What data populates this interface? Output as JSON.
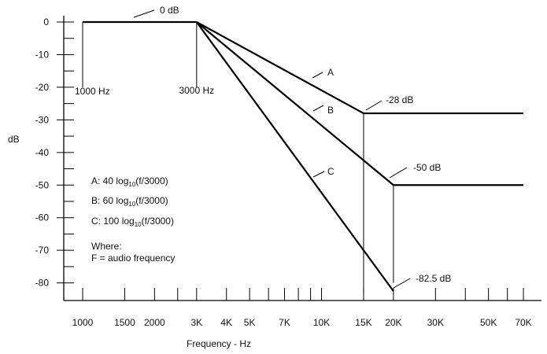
{
  "chart_data": {
    "type": "line",
    "xlabel": "Frequency - Hz",
    "ylabel": "dB",
    "x_scale": "log",
    "xlim": [
      1000,
      70000
    ],
    "ylim": [
      -82.5,
      0
    ],
    "x_ticks": [
      {
        "value": 1000,
        "label": "1000"
      },
      {
        "value": 1500,
        "label": "1500"
      },
      {
        "value": 2000,
        "label": "2000"
      },
      {
        "value": 3000,
        "label": "3K"
      },
      {
        "value": 4000,
        "label": "4K"
      },
      {
        "value": 5000,
        "label": "5K"
      },
      {
        "value": 7000,
        "label": "7K"
      },
      {
        "value": 10000,
        "label": "10K"
      },
      {
        "value": 15000,
        "label": "15K"
      },
      {
        "value": 20000,
        "label": "20K"
      },
      {
        "value": 30000,
        "label": "30K"
      },
      {
        "value": 50000,
        "label": "50K"
      },
      {
        "value": 70000,
        "label": "70K"
      }
    ],
    "x_minor_ticks": [
      2500,
      6000,
      8000,
      9000,
      40000,
      60000
    ],
    "y_ticks": [
      {
        "value": 0,
        "label": "0"
      },
      {
        "value": -10,
        "label": "-10"
      },
      {
        "value": -20,
        "label": "-20"
      },
      {
        "value": -30,
        "label": "-30"
      },
      {
        "value": -40,
        "label": "-40"
      },
      {
        "value": -50,
        "label": "-50"
      },
      {
        "value": -60,
        "label": "-60"
      },
      {
        "value": -70,
        "label": "-70"
      },
      {
        "value": -80,
        "label": "-80"
      }
    ],
    "y_minor_ticks": [
      -5,
      -15,
      -25,
      -35,
      -45,
      -55,
      -65,
      -75
    ],
    "flat": {
      "x": [
        1000,
        3000
      ],
      "y": [
        0,
        0
      ]
    },
    "series": [
      {
        "name": "A",
        "x": [
          3000,
          15000,
          70000
        ],
        "y": [
          0,
          -28,
          -28
        ]
      },
      {
        "name": "B",
        "x": [
          3000,
          20000,
          70000
        ],
        "y": [
          0,
          -50,
          -50
        ]
      },
      {
        "name": "C",
        "x": [
          3000,
          20000
        ],
        "y": [
          0,
          -82.5
        ]
      }
    ],
    "verticals": [
      {
        "x": 1000,
        "y_from": 0,
        "y_to": -20
      },
      {
        "x": 3000,
        "y_from": 0,
        "y_to": -20
      },
      {
        "x": 15000,
        "y_from": -28,
        "y_to": -83.5
      },
      {
        "x": 20000,
        "y_from": -50,
        "y_to": -80
      }
    ],
    "annotations": [
      {
        "text": "0 dB",
        "x": 2000,
        "y": 0
      },
      {
        "text": "1000 Hz",
        "x": 1000,
        "y": -20
      },
      {
        "text": "3000 Hz",
        "x": 3000,
        "y": -20
      },
      {
        "text": "-28 dB",
        "x": 15000,
        "y": -28
      },
      {
        "text": "-50 dB",
        "x": 20000,
        "y": -50
      },
      {
        "text": "-82.5 dB",
        "x": 20000,
        "y": -82.5
      }
    ],
    "legend": {
      "position": "bottom-left",
      "items": [
        {
          "prefix": "A: 40 log",
          "sub": "10",
          "suffix": "(f/3000)"
        },
        {
          "prefix": "B: 60 log",
          "sub": "10",
          "suffix": "(f/3000)"
        },
        {
          "prefix": "C: 100 log",
          "sub": "10",
          "suffix": "(f/3000)"
        }
      ],
      "note_lines": [
        "Where:",
        "F = audio frequency"
      ]
    }
  }
}
